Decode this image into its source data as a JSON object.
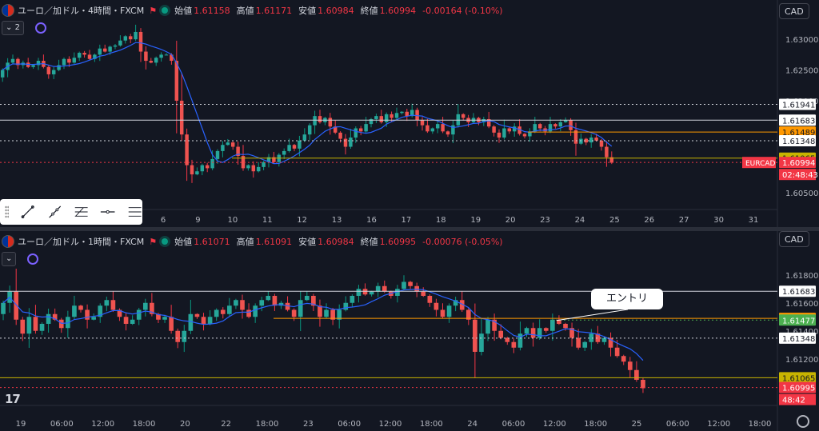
{
  "colors": {
    "up": "#089981",
    "down": "#f23645",
    "upBody": "#26a69a",
    "downBody": "#ef5350",
    "ma": "#2962ff",
    "white": "#d1d4dc",
    "orange": "#ff9800",
    "yellow": "#c8b400",
    "green": "#4caf50",
    "bg": "#131722"
  },
  "pane1": {
    "title": "ユーロ／加ドル・4時間・FXCM",
    "ohlc": {
      "open_label": "始値",
      "open": "1.61158",
      "high_label": "高値",
      "high": "1.61171",
      "low_label": "安値",
      "low": "1.60984",
      "close_label": "終値",
      "close": "1.60994",
      "change": "-0.00164 (-0.10%)"
    },
    "indicator_count": "2",
    "currency": "CAD",
    "symbol_tag": "EURCAD",
    "countdown": "02:48:43",
    "chart_data": {
      "type": "candlestick",
      "ylim": [
        1.6028,
        1.6338
      ],
      "yticks": [
        "1.63000",
        "1.62500",
        "1.62000",
        "1.60500"
      ],
      "ytick_values": [
        1.63,
        1.625,
        1.62,
        1.605
      ],
      "xticks": [
        "6",
        "9",
        "10",
        "11",
        "12",
        "13",
        "16",
        "17",
        "18",
        "19",
        "20",
        "23",
        "24",
        "25",
        "26",
        "27",
        "30",
        "31"
      ],
      "xtick_pos": [
        0,
        1,
        2,
        3,
        4,
        5,
        6,
        7,
        8,
        9,
        10,
        11,
        12,
        13,
        14,
        15,
        16,
        17
      ],
      "hlines": [
        {
          "price": 1.61941,
          "label": "1.61941",
          "style": "dotted",
          "color": "white"
        },
        {
          "price": 1.61683,
          "label": "1.61683",
          "style": "solid",
          "color": "white"
        },
        {
          "price": 1.61489,
          "label": "1.61489",
          "style": "solid",
          "color": "orange"
        },
        {
          "price": 1.61348,
          "label": "1.61348",
          "style": "dotted",
          "color": "white"
        },
        {
          "price": 1.61065,
          "label": "1.61065",
          "style": "solid",
          "color": "yellow"
        },
        {
          "price": 1.60994,
          "label": "1.60994",
          "style": "dotted",
          "color": "down"
        }
      ],
      "closes": [
        1.625,
        1.6262,
        1.6268,
        1.6258,
        1.6262,
        1.6255,
        1.6258,
        1.6265,
        1.6255,
        1.6243,
        1.625,
        1.6258,
        1.6268,
        1.6262,
        1.627,
        1.6278,
        1.6275,
        1.6268,
        1.6275,
        1.6285,
        1.628,
        1.6288,
        1.629,
        1.6298,
        1.6305,
        1.63,
        1.6312,
        1.628,
        1.6265,
        1.6262,
        1.627,
        1.6275,
        1.6275,
        1.6265,
        1.62,
        1.6145,
        1.6095,
        1.608,
        1.6085,
        1.6095,
        1.609,
        1.6105,
        1.6118,
        1.6128,
        1.6132,
        1.6125,
        1.611,
        1.609,
        1.6095,
        1.6085,
        1.6092,
        1.61,
        1.6108,
        1.61,
        1.6112,
        1.6118,
        1.6128,
        1.6122,
        1.6135,
        1.6145,
        1.616,
        1.6175,
        1.6165,
        1.6172,
        1.6158,
        1.6148,
        1.6138,
        1.6125,
        1.614,
        1.6155,
        1.615,
        1.6162,
        1.617,
        1.6175,
        1.6165,
        1.6178,
        1.6172,
        1.618,
        1.6182,
        1.6175,
        1.6185,
        1.6168,
        1.616,
        1.615,
        1.6155,
        1.6162,
        1.615,
        1.6145,
        1.616,
        1.6178,
        1.6172,
        1.6165,
        1.6172,
        1.6165,
        1.617,
        1.6158,
        1.6148,
        1.614,
        1.6155,
        1.615,
        1.6158,
        1.6146,
        1.6142,
        1.615,
        1.6162,
        1.6155,
        1.615,
        1.6162,
        1.6158,
        1.6165,
        1.6168,
        1.6152,
        1.613,
        1.6138,
        1.6132,
        1.614,
        1.6135,
        1.6125,
        1.6108,
        1.6099
      ]
    }
  },
  "pane2": {
    "title": "ユーロ／加ドル・1時間・FXCM",
    "ohlc": {
      "open_label": "始値",
      "open": "1.61071",
      "high_label": "高値",
      "high": "1.61091",
      "low_label": "安値",
      "low": "1.60984",
      "close_label": "終値",
      "close": "1.60995",
      "change": "-0.00076 (-0.05%)"
    },
    "currency": "CAD",
    "countdown": "48:42",
    "callout": "エントリ",
    "chart_data": {
      "type": "candlestick",
      "ylim": [
        1.6089,
        1.6193
      ],
      "yticks": [
        "1.61800",
        "1.61600",
        "1.61400",
        "1.61200"
      ],
      "ytick_values": [
        1.618,
        1.616,
        1.614,
        1.612
      ],
      "xticks": [
        "19",
        "06:00",
        "12:00",
        "18:00",
        "20",
        "22",
        "18:00",
        "23",
        "06:00",
        "12:00",
        "18:00",
        "24",
        "06:00",
        "12:00",
        "18:00",
        "25",
        "06:00",
        "12:00",
        "18:00"
      ],
      "xtick_pos": [
        0,
        1,
        2,
        3,
        4,
        5,
        6,
        7,
        8,
        9,
        10,
        11,
        12,
        13,
        14,
        15,
        16,
        17,
        18
      ],
      "hlines": [
        {
          "price": 1.61683,
          "label": "1.61683",
          "style": "solid",
          "color": "white"
        },
        {
          "price": 1.61489,
          "label": "1.61489",
          "style": "solid",
          "color": "orange"
        },
        {
          "price": 1.61477,
          "label": "1.61477",
          "style": "dotted",
          "color": "green"
        },
        {
          "price": 1.61348,
          "label": "1.61348",
          "style": "dotted",
          "color": "white"
        },
        {
          "price": 1.61065,
          "label": "1.61065",
          "style": "solid",
          "color": "yellow"
        },
        {
          "price": 1.60995,
          "label": "1.60995",
          "style": "dotted",
          "color": "down"
        }
      ],
      "closes": [
        1.616,
        1.6168,
        1.6148,
        1.6138,
        1.615,
        1.614,
        1.6145,
        1.6152,
        1.6148,
        1.6142,
        1.615,
        1.6158,
        1.6155,
        1.6148,
        1.615,
        1.6158,
        1.6162,
        1.6155,
        1.615,
        1.6145,
        1.6148,
        1.6155,
        1.616,
        1.6152,
        1.6148,
        1.615,
        1.614,
        1.6132,
        1.614,
        1.6152,
        1.615,
        1.6145,
        1.615,
        1.6155,
        1.6152,
        1.6158,
        1.6162,
        1.6155,
        1.615,
        1.6158,
        1.6162,
        1.6165,
        1.6158,
        1.616,
        1.6155,
        1.615,
        1.6162,
        1.6165,
        1.6158,
        1.615,
        1.6155,
        1.6148,
        1.6155,
        1.616,
        1.6165,
        1.617,
        1.6166,
        1.6168,
        1.6172,
        1.6168,
        1.6165,
        1.617,
        1.6175,
        1.6172,
        1.6168,
        1.6165,
        1.616,
        1.6155,
        1.615,
        1.6158,
        1.6162,
        1.6155,
        1.6148,
        1.6125,
        1.6138,
        1.6148,
        1.614,
        1.6135,
        1.6132,
        1.6128,
        1.6138,
        1.6142,
        1.6135,
        1.6142,
        1.614,
        1.6148,
        1.6145,
        1.6142,
        1.6135,
        1.6128,
        1.6132,
        1.6138,
        1.6132,
        1.6135,
        1.6128,
        1.6122,
        1.6118,
        1.6112,
        1.6105,
        1.6099
      ]
    }
  },
  "tools": [
    "trendline-icon",
    "ray-icon",
    "fib-icon",
    "hline-icon",
    "channel-icon"
  ]
}
